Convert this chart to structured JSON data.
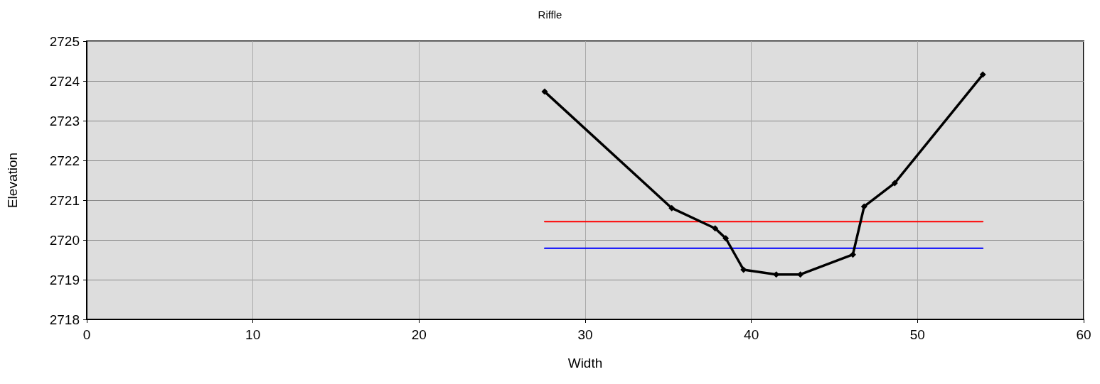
{
  "chart_data": {
    "type": "line",
    "title": "Riffle",
    "xlabel": "Width",
    "ylabel": "Elevation",
    "series": [
      {
        "color": "#000000",
        "marker": "diamond",
        "x": [
          27.56,
          35.21,
          37.82,
          38.46,
          39.53,
          41.5,
          42.95,
          46.11,
          46.79,
          48.63,
          53.93
        ],
        "values": [
          2723.73,
          2720.8,
          2720.29,
          2720.04,
          2719.25,
          2719.13,
          2719.13,
          2719.63,
          2720.84,
          2721.43,
          2724.16
        ]
      },
      {
        "color": "#ff0000",
        "marker": "none",
        "x": [
          27.56,
          53.93
        ],
        "values": [
          2720.46,
          2720.46
        ]
      },
      {
        "color": "#0000ff",
        "marker": "none",
        "x": [
          27.56,
          53.93
        ],
        "values": [
          2719.79,
          2719.79
        ]
      }
    ],
    "xlim": [
      0,
      60
    ],
    "xticks": [
      0,
      10,
      20,
      30,
      40,
      50,
      60
    ],
    "ylim": [
      2718,
      2725
    ],
    "yticks": [
      2718,
      2719,
      2720,
      2721,
      2722,
      2723,
      2724,
      2725
    ],
    "grid": true,
    "line_style": "solid"
  }
}
